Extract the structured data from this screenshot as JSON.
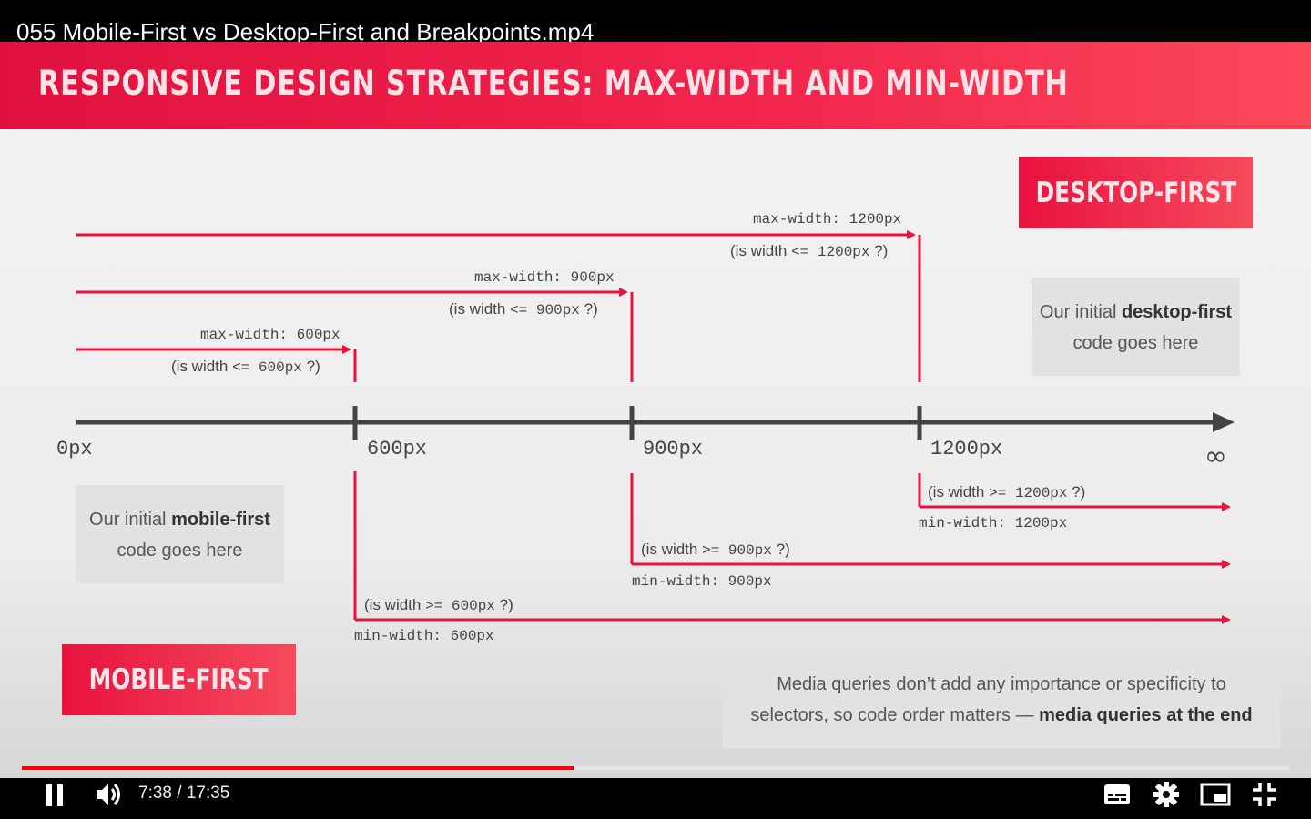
{
  "video": {
    "title": "055 Mobile-First vs Desktop-First and Breakpoints.mp4",
    "time_current": "7:38",
    "time_separator": "/",
    "time_total": "17:35",
    "progress": 0.435
  },
  "slide": {
    "heading": "RESPONSIVE DESIGN STRATEGIES: MAX-WIDTH AND MIN-WIDTH",
    "desktop_tag": "DESKTOP-FIRST",
    "mobile_tag": "MOBILE-FIRST",
    "desktop_note": {
      "pre": "Our initial ",
      "bold": "desktop-first",
      "post": " code goes here"
    },
    "mobile_note": {
      "pre": "Our initial ",
      "bold": "mobile-first",
      "post": " code goes here"
    },
    "bottom_note": {
      "line1": "Media queries don’t add any importance or specificity to",
      "line2_pre": "selectors, so code order matters — ",
      "line2_bold": "media queries at the end"
    },
    "axis": {
      "start": "0px",
      "b1": "600px",
      "b2": "900px",
      "b3": "1200px",
      "end": "∞"
    },
    "max_queries": [
      {
        "label": "max-width: 1200px",
        "q_pre": "(is width ",
        "q_op": "<= 1200px",
        "q_post": " ?)"
      },
      {
        "label": "max-width: 900px",
        "q_pre": "(is width ",
        "q_op": "<= 900px",
        "q_post": " ?)"
      },
      {
        "label": "max-width: 600px",
        "q_pre": "(is width ",
        "q_op": "<= 600px",
        "q_post": " ?)"
      }
    ],
    "min_queries": [
      {
        "label": "min-width: 1200px",
        "q_pre": "(is width ",
        "q_op": ">= 1200px",
        "q_post": " ?)"
      },
      {
        "label": "min-width: 900px",
        "q_pre": "(is width ",
        "q_op": ">= 900px",
        "q_post": " ?)"
      },
      {
        "label": "min-width: 600px",
        "q_pre": "(is width ",
        "q_op": ">= 600px",
        "q_post": " ?)"
      }
    ],
    "accent_color": "#e8123f",
    "axis_color": "#444444"
  },
  "icons": [
    "pause-icon",
    "volume-icon",
    "subtitles-icon",
    "settings-icon",
    "miniplayer-icon",
    "exit-fullscreen-icon"
  ]
}
